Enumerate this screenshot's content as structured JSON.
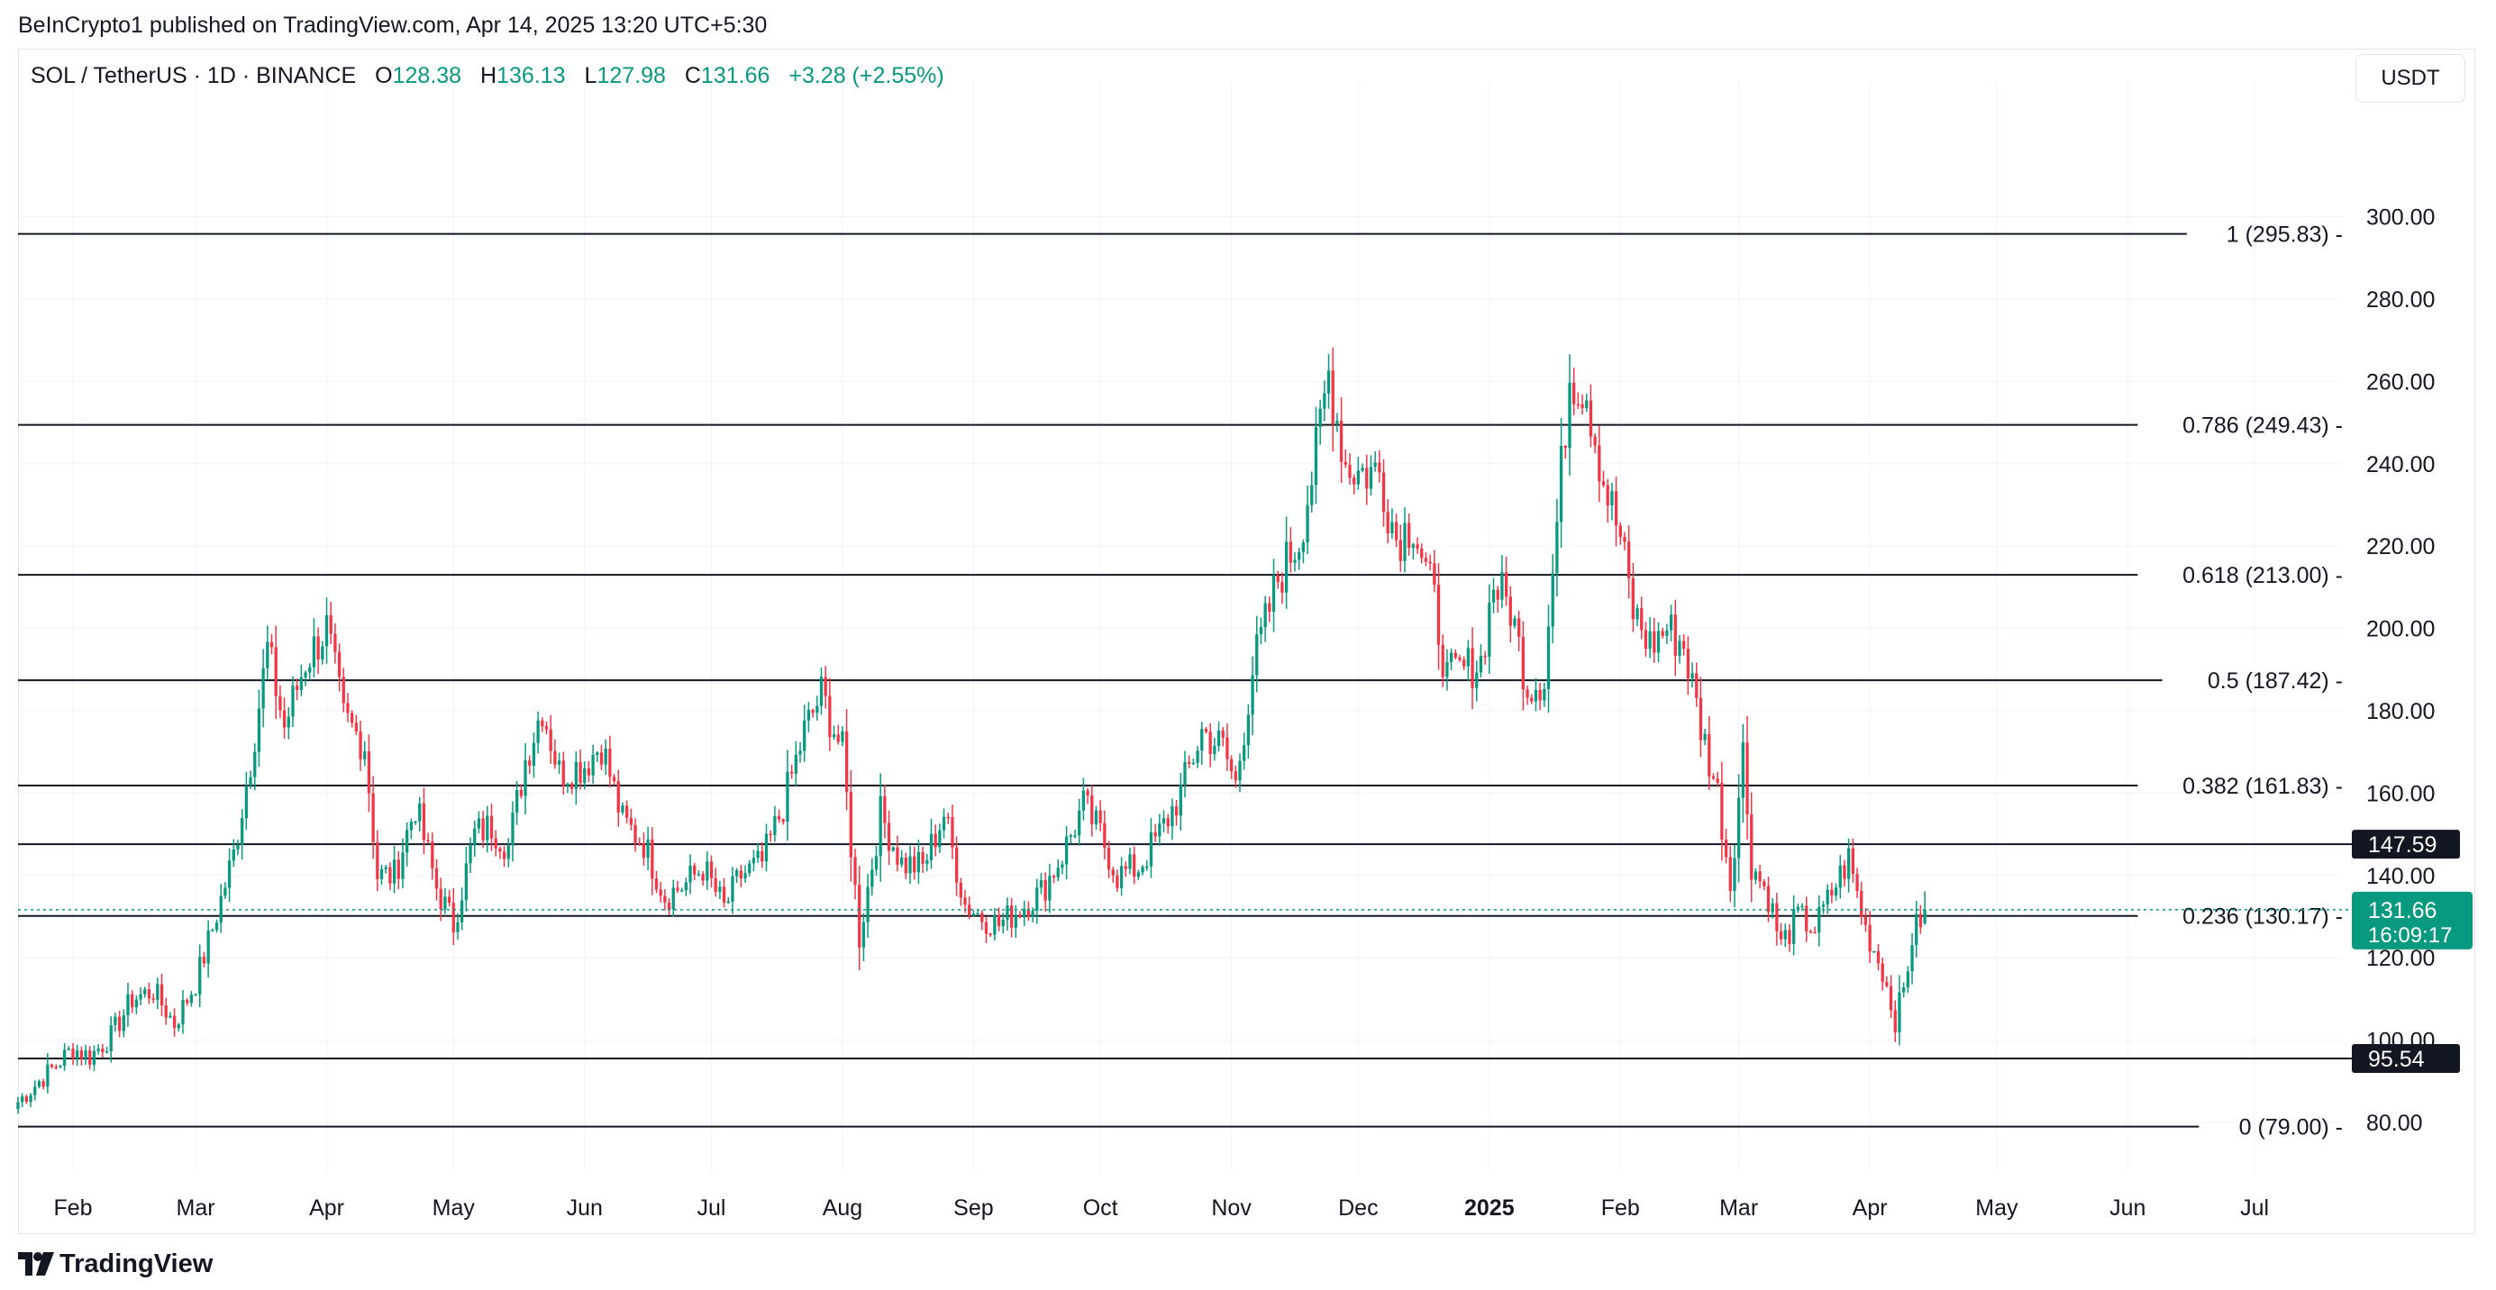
{
  "header": {
    "published_text": "BeInCrypto1 published on TradingView.com, Apr 14, 2025 13:20 UTC+5:30"
  },
  "legend": {
    "symbol": "SOL / TetherUS · 1D · BINANCE",
    "o_label": "O",
    "o_value": "128.38",
    "h_label": "H",
    "h_value": "136.13",
    "l_label": "L",
    "l_value": "127.98",
    "c_label": "C",
    "c_value": "131.66",
    "change": "+3.28 (+2.55%)"
  },
  "currency_button": "USDT",
  "colors": {
    "up": "#089981",
    "down": "#f23645",
    "grid": "#f0f3fa",
    "level_line": "#131722",
    "price_line": "#089981"
  },
  "chart_data": {
    "type": "candlestick",
    "title": "SOL / TetherUS · 1D · BINANCE",
    "xlim": [
      "2024-01-19",
      "2025-07-24"
    ],
    "ylim": [
      66,
      322
    ],
    "y_ticks": [
      "300.00",
      "280.00",
      "260.00",
      "240.00",
      "220.00",
      "200.00",
      "180.00",
      "160.00",
      "140.00",
      "120.00",
      "100.00",
      "80.00"
    ],
    "x_ticks": [
      {
        "label": "Feb",
        "date": "2024-02-01"
      },
      {
        "label": "Mar",
        "date": "2024-03-01"
      },
      {
        "label": "Apr",
        "date": "2024-04-01"
      },
      {
        "label": "May",
        "date": "2024-05-01"
      },
      {
        "label": "Jun",
        "date": "2024-06-01"
      },
      {
        "label": "Jul",
        "date": "2024-07-01"
      },
      {
        "label": "Aug",
        "date": "2024-08-01"
      },
      {
        "label": "Sep",
        "date": "2024-09-01"
      },
      {
        "label": "Oct",
        "date": "2024-10-01"
      },
      {
        "label": "Nov",
        "date": "2024-11-01"
      },
      {
        "label": "Dec",
        "date": "2024-12-01"
      },
      {
        "label": "2025",
        "date": "2025-01-01",
        "bold": true
      },
      {
        "label": "Feb",
        "date": "2025-02-01"
      },
      {
        "label": "Mar",
        "date": "2025-03-01"
      },
      {
        "label": "Apr",
        "date": "2025-04-01"
      },
      {
        "label": "May",
        "date": "2025-05-01"
      },
      {
        "label": "Jun",
        "date": "2025-06-01"
      },
      {
        "label": "Jul",
        "date": "2025-07-01"
      }
    ],
    "fib_levels": [
      {
        "label": "1 (295.83)",
        "value": 295.83
      },
      {
        "label": "0.786 (249.43)",
        "value": 249.43
      },
      {
        "label": "0.618 (213.00)",
        "value": 213.0
      },
      {
        "label": "0.5 (187.42)",
        "value": 187.42
      },
      {
        "label": "0.382 (161.83)",
        "value": 161.83
      },
      {
        "label": "0.236 (130.17)",
        "value": 130.17
      },
      {
        "label": "0 (79.00)",
        "value": 79.0
      }
    ],
    "horizontal_lines": [
      {
        "label": "147.59",
        "value": 147.59
      },
      {
        "label": "95.54",
        "value": 95.54
      }
    ],
    "last_price": {
      "value": 131.66,
      "label": "131.66",
      "countdown": "16:09:17"
    },
    "close_anchors": [
      [
        "2024-01-19",
        85
      ],
      [
        "2024-01-25",
        91
      ],
      [
        "2024-02-01",
        98
      ],
      [
        "2024-02-05",
        96
      ],
      [
        "2024-02-10",
        101
      ],
      [
        "2024-02-15",
        110
      ],
      [
        "2024-02-20",
        112
      ],
      [
        "2024-02-25",
        104
      ],
      [
        "2024-03-01",
        114
      ],
      [
        "2024-03-05",
        127
      ],
      [
        "2024-03-10",
        145
      ],
      [
        "2024-03-14",
        168
      ],
      [
        "2024-03-18",
        195
      ],
      [
        "2024-03-22",
        176
      ],
      [
        "2024-03-27",
        192
      ],
      [
        "2024-04-01",
        200
      ],
      [
        "2024-04-05",
        178
      ],
      [
        "2024-04-10",
        172
      ],
      [
        "2024-04-13",
        140
      ],
      [
        "2024-04-17",
        140
      ],
      [
        "2024-04-22",
        157
      ],
      [
        "2024-04-27",
        137
      ],
      [
        "2024-05-01",
        128
      ],
      [
        "2024-05-06",
        150
      ],
      [
        "2024-05-10",
        152
      ],
      [
        "2024-05-14",
        147
      ],
      [
        "2024-05-18",
        168
      ],
      [
        "2024-05-22",
        181
      ],
      [
        "2024-05-26",
        165
      ],
      [
        "2024-06-01",
        167
      ],
      [
        "2024-06-05",
        172
      ],
      [
        "2024-06-10",
        153
      ],
      [
        "2024-06-15",
        148
      ],
      [
        "2024-06-20",
        135
      ],
      [
        "2024-06-25",
        138
      ],
      [
        "2024-06-29",
        142
      ],
      [
        "2024-07-04",
        132
      ],
      [
        "2024-07-08",
        140
      ],
      [
        "2024-07-13",
        143
      ],
      [
        "2024-07-18",
        157
      ],
      [
        "2024-07-23",
        175
      ],
      [
        "2024-07-27",
        184
      ],
      [
        "2024-08-01",
        170
      ],
      [
        "2024-08-05",
        125
      ],
      [
        "2024-08-10",
        155
      ],
      [
        "2024-08-15",
        143
      ],
      [
        "2024-08-20",
        142
      ],
      [
        "2024-08-25",
        155
      ],
      [
        "2024-08-30",
        133
      ],
      [
        "2024-09-03",
        130
      ],
      [
        "2024-09-07",
        128
      ],
      [
        "2024-09-12",
        132
      ],
      [
        "2024-09-17",
        136
      ],
      [
        "2024-09-22",
        145
      ],
      [
        "2024-09-27",
        157
      ],
      [
        "2024-10-01",
        150
      ],
      [
        "2024-10-05",
        140
      ],
      [
        "2024-10-10",
        142
      ],
      [
        "2024-10-15",
        150
      ],
      [
        "2024-10-20",
        160
      ],
      [
        "2024-10-25",
        175
      ],
      [
        "2024-10-30",
        171
      ],
      [
        "2024-11-02",
        162
      ],
      [
        "2024-11-06",
        190
      ],
      [
        "2024-11-12",
        212
      ],
      [
        "2024-11-17",
        222
      ],
      [
        "2024-11-21",
        242
      ],
      [
        "2024-11-24",
        262
      ],
      [
        "2024-11-28",
        240
      ],
      [
        "2024-12-01",
        238
      ],
      [
        "2024-12-06",
        238
      ],
      [
        "2024-12-10",
        222
      ],
      [
        "2024-12-14",
        226
      ],
      [
        "2024-12-19",
        206
      ],
      [
        "2024-12-22",
        188
      ],
      [
        "2024-12-26",
        190
      ],
      [
        "2024-12-30",
        192
      ],
      [
        "2025-01-02",
        211
      ],
      [
        "2025-01-06",
        205
      ],
      [
        "2025-01-10",
        186
      ],
      [
        "2025-01-14",
        188
      ],
      [
        "2025-01-18",
        238
      ],
      [
        "2025-01-20",
        262
      ],
      [
        "2025-01-24",
        258
      ],
      [
        "2025-01-28",
        236
      ],
      [
        "2025-02-01",
        222
      ],
      [
        "2025-02-04",
        204
      ],
      [
        "2025-02-08",
        196
      ],
      [
        "2025-02-12",
        200
      ],
      [
        "2025-02-16",
        196
      ],
      [
        "2025-02-20",
        176
      ],
      [
        "2025-02-24",
        160
      ],
      [
        "2025-02-27",
        138
      ],
      [
        "2025-03-02",
        170
      ],
      [
        "2025-03-04",
        143
      ],
      [
        "2025-03-08",
        135
      ],
      [
        "2025-03-11",
        123
      ],
      [
        "2025-03-15",
        130
      ],
      [
        "2025-03-19",
        127
      ],
      [
        "2025-03-24",
        138
      ],
      [
        "2025-03-27",
        144
      ],
      [
        "2025-03-31",
        127
      ],
      [
        "2025-04-04",
        117
      ],
      [
        "2025-04-07",
        105
      ],
      [
        "2025-04-09",
        112
      ],
      [
        "2025-04-11",
        125
      ],
      [
        "2025-04-14",
        131.66
      ]
    ]
  },
  "footer": {
    "logo_text": "TradingView"
  }
}
